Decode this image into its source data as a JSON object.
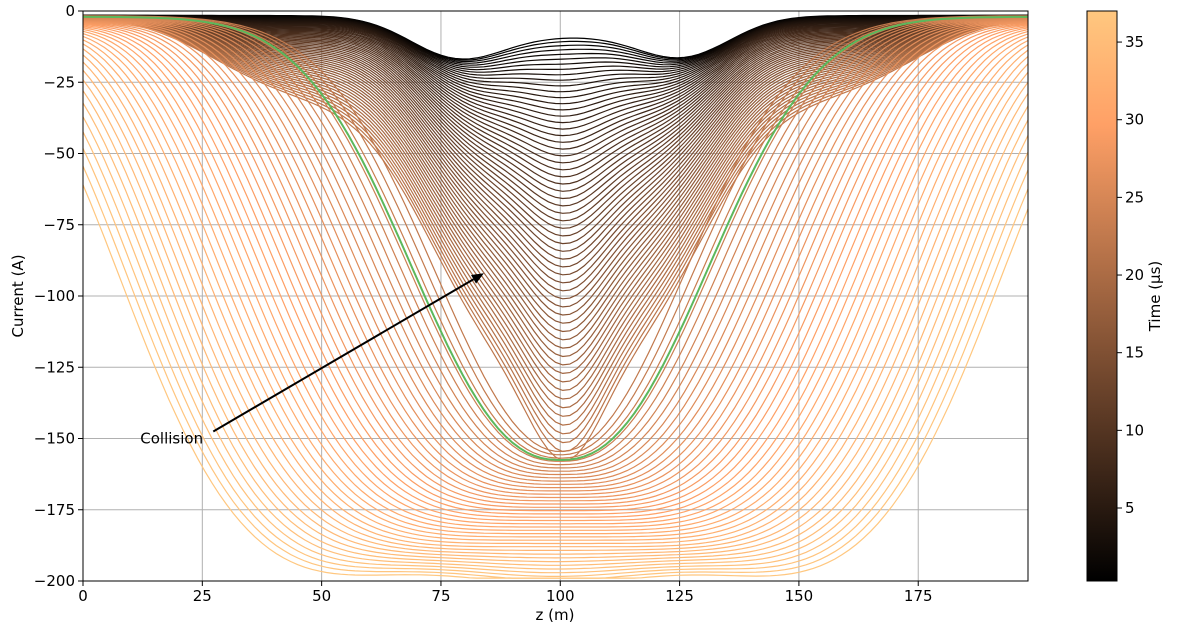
{
  "chart_data": {
    "type": "line",
    "xlabel": "z (m)",
    "ylabel": "Current (A)",
    "xlim": [
      0,
      198
    ],
    "ylim": [
      -200,
      0
    ],
    "x_ticks": [
      0,
      25,
      50,
      75,
      100,
      125,
      150,
      175
    ],
    "x_tick_labels": [
      "0",
      "25",
      "50",
      "75",
      "100",
      "125",
      "150",
      "175"
    ],
    "y_ticks": [
      0,
      -25,
      -50,
      -75,
      -100,
      -125,
      -150,
      -175,
      -200
    ],
    "y_tick_labels": [
      "0",
      "−25",
      "−50",
      "−75",
      "−100",
      "−125",
      "−150",
      "−175",
      "−200"
    ],
    "grid": true,
    "colormap": "copper",
    "colorbar": {
      "label": "Time (µs)",
      "range": [
        0.3,
        37
      ],
      "ticks": [
        5,
        10,
        15,
        20,
        25,
        30,
        35
      ],
      "tick_labels": [
        "5",
        "10",
        "15",
        "20",
        "25",
        "30",
        "35"
      ]
    },
    "series_count": 100,
    "time_range_us": [
      0.3,
      37
    ],
    "highlight_series": {
      "color": "#5cb85c",
      "time_us": 23.5,
      "min_current": -152,
      "min_z": 101,
      "description": "highlighted current profile at collision time"
    },
    "final_series": {
      "time_us": 37,
      "min_current": -195,
      "flat_bottom_range_z": [
        50,
        150
      ]
    },
    "annotation": {
      "text": "Collision",
      "text_xy": [
        12,
        -150
      ],
      "arrow_tip_xy": [
        84,
        -92
      ]
    }
  }
}
